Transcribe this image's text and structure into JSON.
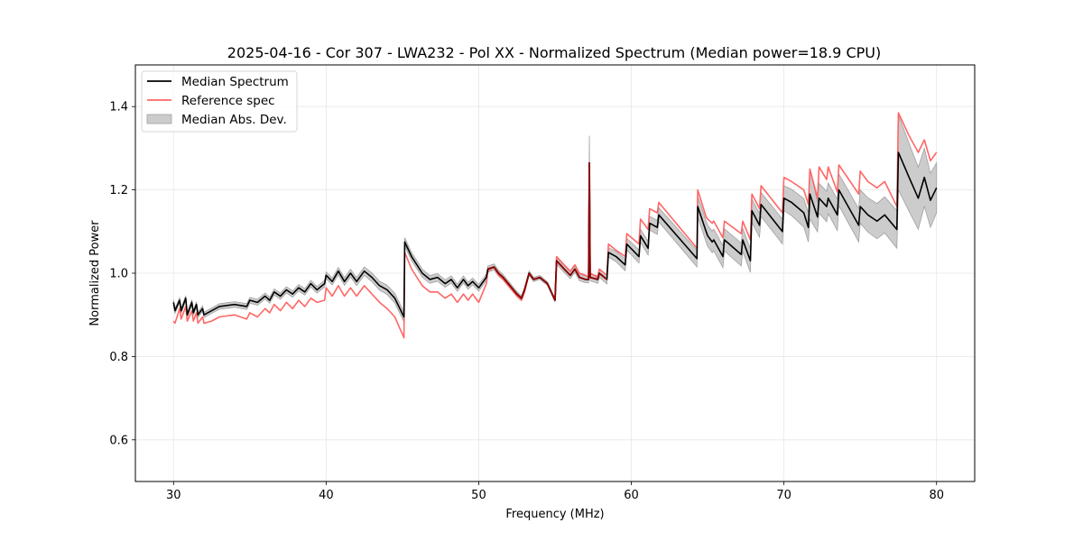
{
  "chart_data": {
    "type": "line",
    "title": "2025-04-16 - Cor 307 - LWA232 - Pol XX - Normalized Spectrum (Median power=18.9 CPU)",
    "xlabel": "Frequency (MHz)",
    "ylabel": "Normalized Power",
    "xlim": [
      27.5,
      82.5
    ],
    "ylim": [
      0.5,
      1.5
    ],
    "xticks": [
      30,
      40,
      50,
      60,
      70,
      80
    ],
    "xtick_labels": [
      "30",
      "40",
      "50",
      "60",
      "70",
      "80"
    ],
    "yticks": [
      0.6,
      0.8,
      1.0,
      1.2,
      1.4
    ],
    "ytick_labels": [
      "0.6",
      "0.8",
      "1.0",
      "1.2",
      "1.4"
    ],
    "grid": true,
    "legend_position": "top-left",
    "legend": [
      {
        "label": "Median Spectrum",
        "kind": "line",
        "color": "#000000"
      },
      {
        "label": "Reference spec",
        "kind": "line",
        "color": "#ff6666"
      },
      {
        "label": "Median Abs. Dev.",
        "kind": "band",
        "color": "#cccccc"
      }
    ],
    "colors": {
      "median": "#000000",
      "reference": "#ff6666",
      "mad_fill": "#cccccc",
      "mad_edge": "#a0a0a0",
      "overlap": "#8b0000"
    },
    "series": [
      {
        "name": "Median Spectrum",
        "x": [
          30.0,
          30.1,
          30.4,
          30.5,
          30.8,
          30.9,
          31.2,
          31.3,
          31.5,
          31.6,
          31.9,
          32.0,
          32.5,
          33.0,
          34.0,
          34.8,
          35.0,
          35.5,
          36.0,
          36.3,
          36.6,
          37.0,
          37.4,
          37.8,
          38.2,
          38.6,
          39.0,
          39.4,
          39.9,
          40.0,
          40.4,
          40.8,
          41.2,
          41.6,
          42.0,
          42.5,
          43.0,
          43.5,
          44.0,
          44.5,
          45.1,
          45.15,
          45.6,
          46.3,
          46.8,
          47.3,
          47.8,
          48.2,
          48.6,
          49.0,
          49.3,
          49.6,
          50.0,
          50.5,
          50.6,
          51.0,
          51.3,
          51.6,
          52.5,
          52.8,
          53.0,
          53.3,
          53.6,
          54.0,
          54.5,
          55.0,
          55.1,
          55.6,
          56.0,
          56.3,
          56.6,
          57.0,
          57.2,
          57.25,
          57.3,
          57.8,
          57.9,
          58.4,
          58.5,
          59.0,
          59.6,
          59.7,
          60.5,
          60.6,
          61.1,
          61.2,
          61.7,
          61.8,
          64.3,
          64.35,
          64.9,
          65.0,
          65.3,
          65.4,
          66.0,
          66.1,
          67.2,
          67.3,
          67.8,
          67.9,
          68.4,
          68.5,
          69.9,
          70.0,
          70.5,
          71.3,
          71.6,
          71.7,
          72.2,
          72.3,
          72.8,
          72.9,
          73.5,
          73.6,
          74.9,
          75.0,
          75.5,
          76.1,
          76.6,
          77.4,
          77.5,
          78.2,
          78.8,
          79.2,
          79.6,
          80.0
        ],
        "values": [
          0.93,
          0.91,
          0.935,
          0.91,
          0.94,
          0.9,
          0.93,
          0.905,
          0.925,
          0.9,
          0.915,
          0.9,
          0.91,
          0.92,
          0.925,
          0.92,
          0.935,
          0.93,
          0.945,
          0.935,
          0.955,
          0.945,
          0.96,
          0.95,
          0.965,
          0.955,
          0.975,
          0.96,
          0.975,
          0.995,
          0.98,
          1.005,
          0.98,
          1.0,
          0.98,
          1.005,
          0.99,
          0.97,
          0.96,
          0.94,
          0.895,
          1.075,
          1.04,
          1.0,
          0.985,
          0.99,
          0.975,
          0.985,
          0.965,
          0.985,
          0.97,
          0.98,
          0.965,
          0.99,
          1.01,
          1.015,
          1.0,
          0.99,
          0.95,
          0.94,
          0.96,
          1.0,
          0.985,
          0.99,
          0.975,
          0.935,
          1.03,
          1.01,
          0.995,
          1.01,
          0.99,
          0.985,
          0.985,
          1.265,
          0.99,
          0.985,
          1.0,
          0.985,
          1.05,
          1.04,
          1.02,
          1.07,
          1.04,
          1.09,
          1.06,
          1.12,
          1.11,
          1.14,
          1.035,
          1.16,
          1.1,
          1.09,
          1.075,
          1.08,
          1.04,
          1.08,
          1.045,
          1.08,
          1.03,
          1.15,
          1.115,
          1.165,
          1.1,
          1.18,
          1.17,
          1.145,
          1.11,
          1.19,
          1.135,
          1.18,
          1.16,
          1.18,
          1.14,
          1.2,
          1.115,
          1.16,
          1.14,
          1.125,
          1.14,
          1.105,
          1.29,
          1.23,
          1.18,
          1.23,
          1.175,
          1.205
        ]
      },
      {
        "name": "Reference spec",
        "x": [
          30.0,
          30.1,
          30.4,
          30.5,
          30.8,
          30.9,
          31.2,
          31.3,
          31.5,
          31.6,
          31.9,
          32.0,
          32.5,
          33.0,
          34.0,
          34.8,
          35.0,
          35.5,
          36.0,
          36.3,
          36.6,
          37.0,
          37.4,
          37.8,
          38.2,
          38.6,
          39.0,
          39.4,
          39.9,
          40.0,
          40.4,
          40.8,
          41.2,
          41.6,
          42.0,
          42.5,
          43.0,
          43.5,
          44.0,
          44.5,
          45.1,
          45.15,
          45.6,
          46.3,
          46.8,
          47.3,
          47.8,
          48.2,
          48.6,
          49.0,
          49.3,
          49.6,
          50.0,
          50.5,
          50.6,
          51.0,
          51.3,
          51.6,
          52.5,
          52.8,
          53.0,
          53.3,
          53.6,
          54.0,
          54.5,
          55.0,
          55.1,
          55.6,
          56.0,
          56.3,
          56.6,
          57.0,
          57.2,
          57.25,
          57.3,
          57.8,
          57.9,
          58.4,
          58.5,
          59.0,
          59.6,
          59.7,
          60.5,
          60.6,
          61.1,
          61.2,
          61.7,
          61.8,
          64.3,
          64.35,
          64.9,
          65.0,
          65.3,
          65.4,
          66.0,
          66.1,
          67.2,
          67.3,
          67.8,
          67.9,
          68.4,
          68.5,
          69.9,
          70.0,
          70.5,
          71.3,
          71.6,
          71.7,
          72.2,
          72.3,
          72.8,
          72.9,
          73.5,
          73.6,
          74.9,
          75.0,
          75.5,
          76.1,
          76.6,
          77.4,
          77.5,
          78.2,
          78.8,
          79.2,
          79.6,
          80.0
        ],
        "values": [
          0.885,
          0.88,
          0.915,
          0.89,
          0.92,
          0.885,
          0.91,
          0.885,
          0.905,
          0.88,
          0.895,
          0.88,
          0.885,
          0.895,
          0.9,
          0.89,
          0.905,
          0.895,
          0.915,
          0.905,
          0.925,
          0.91,
          0.93,
          0.915,
          0.935,
          0.92,
          0.94,
          0.93,
          0.935,
          0.965,
          0.945,
          0.97,
          0.945,
          0.965,
          0.945,
          0.97,
          0.95,
          0.93,
          0.915,
          0.895,
          0.845,
          1.05,
          1.01,
          0.97,
          0.955,
          0.955,
          0.94,
          0.95,
          0.93,
          0.95,
          0.935,
          0.95,
          0.93,
          0.975,
          1.005,
          1.015,
          0.995,
          0.985,
          0.945,
          0.935,
          0.955,
          1.0,
          0.985,
          0.99,
          0.975,
          0.935,
          1.04,
          1.02,
          1.005,
          1.02,
          1.0,
          0.995,
          0.99,
          1.265,
          1.0,
          0.99,
          1.01,
          0.995,
          1.07,
          1.055,
          1.04,
          1.095,
          1.07,
          1.13,
          1.105,
          1.155,
          1.145,
          1.17,
          1.06,
          1.2,
          1.135,
          1.13,
          1.12,
          1.125,
          1.085,
          1.125,
          1.095,
          1.125,
          1.08,
          1.19,
          1.155,
          1.21,
          1.145,
          1.23,
          1.22,
          1.2,
          1.165,
          1.25,
          1.18,
          1.255,
          1.225,
          1.255,
          1.195,
          1.26,
          1.19,
          1.245,
          1.22,
          1.205,
          1.22,
          1.16,
          1.385,
          1.33,
          1.29,
          1.32,
          1.27,
          1.29
        ]
      },
      {
        "name": "Median Abs. Dev.",
        "x": [
          30.0,
          40.0,
          45.1,
          45.15,
          50.0,
          55.0,
          55.1,
          57.2,
          57.25,
          57.3,
          60.0,
          64.3,
          64.35,
          70.0,
          71.6,
          71.7,
          71.8,
          75.0,
          77.4,
          77.5,
          80.0
        ],
        "mad": [
          0.006,
          0.008,
          0.012,
          0.01,
          0.008,
          0.004,
          0.008,
          0.008,
          0.065,
          0.008,
          0.015,
          0.02,
          0.025,
          0.03,
          0.035,
          0.06,
          0.035,
          0.04,
          0.045,
          0.09,
          0.06
        ]
      }
    ]
  }
}
